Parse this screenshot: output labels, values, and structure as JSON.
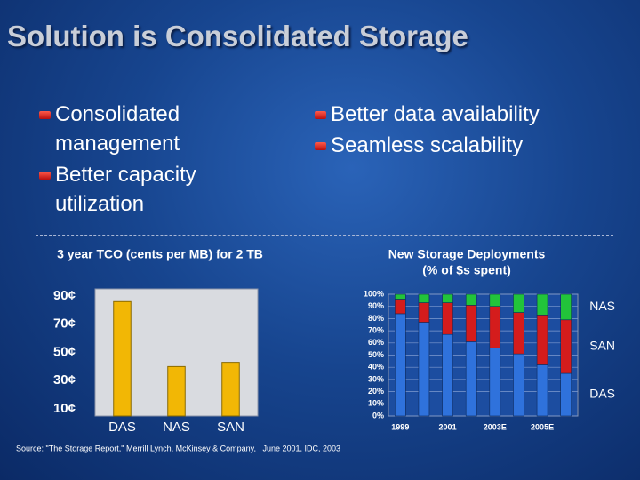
{
  "title": "Solution is Consolidated Storage",
  "bullets": {
    "left": [
      "Consolidated management",
      "Better capacity utilization"
    ],
    "right": [
      "Better data availability",
      "Seamless scalability"
    ]
  },
  "source": "Source: \"The Storage Report,\" Merrill Lynch, McKinsey & Company,   June 2001, IDC, 2003",
  "chart_data": [
    {
      "type": "bar",
      "title": "3 year TCO (cents per MB) for 2 TB",
      "categories": [
        "DAS",
        "NAS",
        "SAN"
      ],
      "values": [
        86,
        40,
        43
      ],
      "color": "#f2b705",
      "ylim": [
        5,
        95
      ],
      "yticks": [
        {
          "value": 10,
          "label": "10¢"
        },
        {
          "value": 30,
          "label": "30¢"
        },
        {
          "value": 50,
          "label": "50¢"
        },
        {
          "value": 70,
          "label": "70¢"
        },
        {
          "value": 90,
          "label": "90¢"
        }
      ],
      "grid": false
    },
    {
      "type": "bar",
      "stacked": true,
      "title": "New Storage Deployments",
      "subtitle": "(% of $s spent)",
      "categories": [
        "1999",
        null,
        "2001",
        null,
        "2003E",
        null,
        "2005E",
        null
      ],
      "series": [
        {
          "name": "DAS",
          "color": "#2f72dc",
          "values": [
            84,
            77,
            67,
            61,
            56,
            51,
            42,
            35
          ]
        },
        {
          "name": "SAN",
          "color": "#d41c1c",
          "values": [
            12,
            16,
            26,
            30,
            34,
            34,
            41,
            44
          ]
        },
        {
          "name": "NAS",
          "color": "#22c43a",
          "values": [
            4,
            7,
            7,
            9,
            10,
            15,
            17,
            21
          ]
        }
      ],
      "ylim": [
        0,
        100
      ],
      "yticks": [
        {
          "value": 0,
          "label": "0%"
        },
        {
          "value": 10,
          "label": "10%"
        },
        {
          "value": 20,
          "label": "20%"
        },
        {
          "value": 30,
          "label": "30%"
        },
        {
          "value": 40,
          "label": "40%"
        },
        {
          "value": 50,
          "label": "50%"
        },
        {
          "value": 60,
          "label": "60%"
        },
        {
          "value": 70,
          "label": "70%"
        },
        {
          "value": 80,
          "label": "80%"
        },
        {
          "value": 90,
          "label": "90%"
        },
        {
          "value": 100,
          "label": "100%"
        }
      ],
      "grid": true
    }
  ]
}
